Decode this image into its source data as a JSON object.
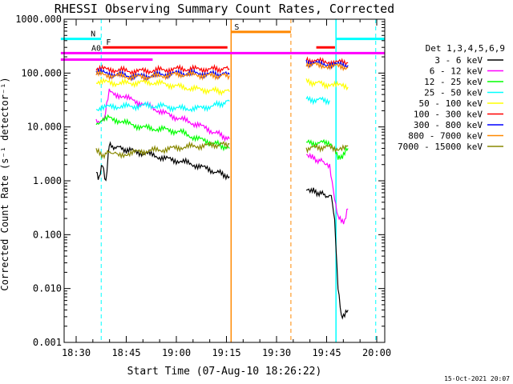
{
  "chart_data": {
    "type": "line",
    "title": "RHESSI Observing Summary Count Rates, Corrected",
    "xlabel": "Start Time (07-Aug-10 18:26:22)",
    "ylabel": "Corrected Count Rate (s⁻¹ detector⁻¹)",
    "xunit": "minutes after 18:26:22",
    "xlim": [
      0,
      96
    ],
    "ylim": [
      0.001,
      1000
    ],
    "yscale": "log",
    "x_ticks": [
      {
        "x": 3.6,
        "label": "18:30"
      },
      {
        "x": 18.6,
        "label": "18:45"
      },
      {
        "x": 33.6,
        "label": "19:00"
      },
      {
        "x": 48.6,
        "label": "19:15"
      },
      {
        "x": 63.6,
        "label": "19:30"
      },
      {
        "x": 78.6,
        "label": "19:45"
      },
      {
        "x": 93.6,
        "label": "20:00"
      }
    ],
    "y_ticks": [
      {
        "v": 1000,
        "label": "1000.000"
      },
      {
        "v": 100,
        "label": "100.000"
      },
      {
        "v": 10,
        "label": "10.000"
      },
      {
        "v": 1,
        "label": "1.000"
      },
      {
        "v": 0.1,
        "label": "0.100"
      },
      {
        "v": 0.01,
        "label": "0.010"
      },
      {
        "v": 0.001,
        "label": "0.001"
      }
    ],
    "legend_title": "Det 1,3,4,5,6,9",
    "legend_position": "right",
    "series": [
      {
        "name": "3 - 6 keV",
        "color": "#000000",
        "segments": [
          [
            [
              9.6,
              1.5
            ],
            [
              10.5,
              1.1
            ],
            [
              11.5,
              2.0
            ],
            [
              12.5,
              1.0
            ],
            [
              13.5,
              4.5
            ],
            [
              15.5,
              4.2
            ],
            [
              20,
              3.6
            ],
            [
              25,
              3.2
            ],
            [
              30,
              2.6
            ],
            [
              35,
              2.3
            ],
            [
              40,
              1.9
            ],
            [
              45,
              1.5
            ],
            [
              49.5,
              1.2
            ]
          ],
          [
            [
              72.5,
              0.72
            ],
            [
              74,
              0.65
            ],
            [
              76,
              0.6
            ],
            [
              78,
              0.55
            ],
            [
              80,
              0.5
            ],
            [
              81,
              0.2
            ],
            [
              82,
              0.01
            ],
            [
              83,
              0.003
            ],
            [
              85,
              0.004
            ]
          ]
        ]
      },
      {
        "name": "6 - 12 keV",
        "color": "#ff00ff",
        "segments": [
          [
            [
              9.6,
              13
            ],
            [
              12,
              13
            ],
            [
              13.5,
              45
            ],
            [
              16,
              40
            ],
            [
              20,
              32
            ],
            [
              25,
              25
            ],
            [
              30,
              18
            ],
            [
              35,
              14
            ],
            [
              40,
              11
            ],
            [
              45,
              8
            ],
            [
              49.5,
              6
            ]
          ],
          [
            [
              72.5,
              3.0
            ],
            [
              74,
              2.7
            ],
            [
              76,
              2.4
            ],
            [
              78,
              2.2
            ],
            [
              79.5,
              2.0
            ],
            [
              81,
              0.5
            ],
            [
              82,
              0.2
            ],
            [
              84,
              0.18
            ],
            [
              85,
              0.3
            ]
          ]
        ]
      },
      {
        "name": "12 - 25 keV",
        "color": "#00ff00",
        "segments": [
          [
            [
              9.6,
              12
            ],
            [
              12,
              13
            ],
            [
              13.5,
              15
            ],
            [
              20,
              11
            ],
            [
              25,
              9.5
            ],
            [
              30,
              9
            ],
            [
              35,
              8
            ],
            [
              40,
              6
            ],
            [
              45,
              5
            ],
            [
              49.5,
              4
            ]
          ],
          [
            [
              72.5,
              5.0
            ],
            [
              76,
              5.0
            ],
            [
              79.5,
              5.2
            ],
            [
              81,
              4
            ],
            [
              82,
              2.5
            ],
            [
              84,
              3.3
            ],
            [
              85,
              4
            ]
          ]
        ]
      },
      {
        "name": "25 - 50 keV",
        "color": "#00ffff",
        "segments": [
          [
            [
              9.6,
              22
            ],
            [
              15,
              24
            ],
            [
              20,
              24
            ],
            [
              25,
              25
            ],
            [
              30,
              24
            ],
            [
              35,
              22
            ],
            [
              40,
              22
            ],
            [
              45,
              25
            ],
            [
              49.5,
              30
            ]
          ],
          [
            [
              72.5,
              32
            ],
            [
              76,
              32
            ],
            [
              79.5,
              31
            ]
          ]
        ]
      },
      {
        "name": "50 - 100 keV",
        "color": "#ffff00",
        "segments": [
          [
            [
              9.6,
              70
            ],
            [
              15,
              65
            ],
            [
              20,
              65
            ],
            [
              25,
              68
            ],
            [
              30,
              63
            ],
            [
              35,
              55
            ],
            [
              40,
              50
            ],
            [
              45,
              47
            ],
            [
              49.5,
              45
            ]
          ],
          [
            [
              72.5,
              70
            ],
            [
              76,
              65
            ],
            [
              79.5,
              60
            ],
            [
              81,
              60
            ],
            [
              85,
              55
            ]
          ]
        ]
      },
      {
        "name": "100 - 300 keV",
        "color": "#ff0000",
        "segments": [
          [
            [
              9.6,
              120
            ],
            [
              15,
              115
            ],
            [
              20,
              108
            ],
            [
              25,
              110
            ],
            [
              30,
              115
            ],
            [
              35,
              120
            ],
            [
              40,
              118
            ],
            [
              45,
              118
            ],
            [
              49.5,
              120
            ]
          ],
          [
            [
              72.5,
              175
            ],
            [
              76,
              165
            ],
            [
              80,
              160
            ],
            [
              85,
              155
            ]
          ]
        ]
      },
      {
        "name": "300 - 800 keV",
        "color": "#0000ff",
        "segments": [
          [
            [
              9.6,
              105
            ],
            [
              15,
              95
            ],
            [
              20,
              88
            ],
            [
              25,
              88
            ],
            [
              30,
              95
            ],
            [
              35,
              100
            ],
            [
              40,
              98
            ],
            [
              45,
              95
            ],
            [
              49.5,
              95
            ]
          ],
          [
            [
              72.5,
              160
            ],
            [
              76,
              150
            ],
            [
              80,
              145
            ],
            [
              85,
              140
            ]
          ]
        ]
      },
      {
        "name": "800 - 7000 keV",
        "color": "#ff8800",
        "segments": [
          [
            [
              9.6,
              95
            ],
            [
              15,
              90
            ],
            [
              20,
              85
            ],
            [
              25,
              85
            ],
            [
              30,
              90
            ],
            [
              35,
              95
            ],
            [
              40,
              92
            ],
            [
              45,
              88
            ],
            [
              49.5,
              90
            ]
          ],
          [
            [
              72.5,
              150
            ],
            [
              76,
              140
            ],
            [
              80,
              135
            ],
            [
              85,
              130
            ]
          ]
        ]
      },
      {
        "name": "7000 - 15000 keV",
        "color": "#888800",
        "segments": [
          [
            [
              9.6,
              3.5
            ],
            [
              12,
              3.0
            ],
            [
              14,
              3.5
            ],
            [
              16,
              3.0
            ],
            [
              20,
              3.3
            ],
            [
              25,
              3.6
            ],
            [
              30,
              3.8
            ],
            [
              35,
              4.2
            ],
            [
              40,
              4.4
            ],
            [
              45,
              4.6
            ],
            [
              49.5,
              4.8
            ]
          ],
          [
            [
              72.5,
              4.0
            ],
            [
              76,
              4.2
            ],
            [
              79.5,
              4.2
            ],
            [
              82,
              4.0
            ],
            [
              85,
              4.5
            ]
          ]
        ]
      }
    ],
    "markers": {
      "dashed_verticals": [
        {
          "x": 11.1,
          "color": "#00ffff"
        },
        {
          "x": 67.9,
          "color": "#ff8800"
        },
        {
          "x": 93.3,
          "color": "#00ffff"
        }
      ],
      "solid_verticals": [
        {
          "x": 50.0,
          "color": "#ff8800"
        },
        {
          "x": 81.4,
          "color": "#00ffff"
        }
      ],
      "flags": [
        {
          "label": "N",
          "color": "#00ffff",
          "segments": [
            [
              -1,
              11.1
            ],
            [
              81.4,
              96
            ]
          ],
          "y": 430
        },
        {
          "label": "F",
          "color": "#ff0000",
          "segments": [
            [
              11.6,
              48.9
            ],
            [
              75.5,
              81.1
            ]
          ],
          "y": 300
        },
        {
          "label": "S",
          "color": "#ff8800",
          "segments": [
            [
              50.0,
              67.9
            ]
          ],
          "y": 580
        },
        {
          "label": "A0",
          "color": "#ff00ff",
          "segments": [
            [
              -1,
              96
            ]
          ],
          "y": 235
        },
        {
          "label": "",
          "color": "#ff00ff",
          "segments": [
            [
              -1,
              26.5
            ]
          ],
          "y": 178
        }
      ]
    },
    "timestamp": "15-Oct-2021 20:07"
  }
}
